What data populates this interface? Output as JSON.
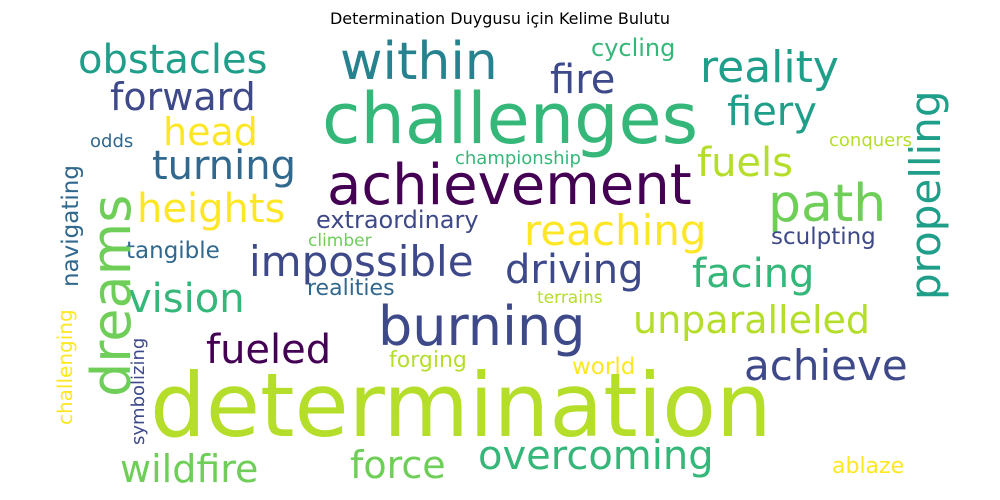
{
  "title": "Determination Duygusu için Kelime Bulutu",
  "palette": {
    "yellow": "#fde725",
    "lime": "#b5de2b",
    "green": "#6ece58",
    "teal": "#1f9e89",
    "blue": "#31688e",
    "indigo": "#3e4989",
    "purple": "#440154"
  },
  "words": {
    "determination": "determination",
    "challenges": "challenges",
    "achievement": "achievement",
    "burning": "burning",
    "within": "within",
    "dreams": "dreams",
    "path": "path",
    "obstacles": "obstacles",
    "reality": "reality",
    "fire": "fire",
    "forward": "forward",
    "fiery": "fiery",
    "head": "head",
    "turning": "turning",
    "fuels": "fuels",
    "heights": "heights",
    "reaching": "reaching",
    "impossible": "impossible",
    "driving": "driving",
    "facing": "facing",
    "vision": "vision",
    "unparalleled": "unparalleled",
    "fueled": "fueled",
    "achieve": "achieve",
    "overcoming": "overcoming",
    "wildfire": "wildfire",
    "force": "force",
    "propelling": "propelling",
    "cycling": "cycling",
    "extraordinary": "extraordinary",
    "sculpting": "sculpting",
    "tangible": "tangible",
    "realities": "realities",
    "championship": "championship",
    "conquers": "conquers",
    "odds": "odds",
    "climber": "climber",
    "terrains": "terrains",
    "forging": "forging",
    "world": "world",
    "ablaze": "ablaze",
    "navigating": "navigating",
    "challenging": "challenging",
    "symbolizing": "symbolizing"
  }
}
